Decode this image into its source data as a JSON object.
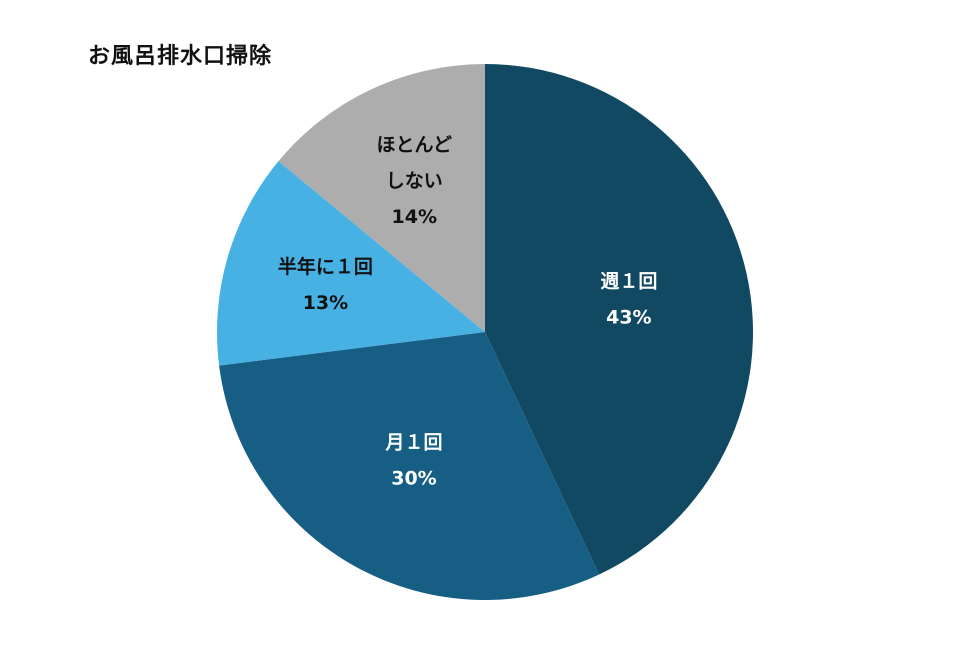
{
  "chart_data": {
    "type": "pie",
    "title": "お風呂排水口掃除",
    "slices": [
      {
        "label_lines": [
          "週１回"
        ],
        "value": 43,
        "value_label": "43%",
        "color": "#114862",
        "text_color": "#ffffff"
      },
      {
        "label_lines": [
          "月１回"
        ],
        "value": 30,
        "value_label": "30%",
        "color": "#175e84",
        "text_color": "#ffffff"
      },
      {
        "label_lines": [
          "半年に１回"
        ],
        "value": 13,
        "value_label": "13%",
        "color": "#47b1e3",
        "text_color": "#111111"
      },
      {
        "label_lines": [
          "ほとんど",
          "しない"
        ],
        "value": 14,
        "value_label": "14%",
        "color": "#adadad",
        "text_color": "#111111"
      }
    ],
    "start": "12 o'clock",
    "direction": "clockwise",
    "legend": "none"
  }
}
